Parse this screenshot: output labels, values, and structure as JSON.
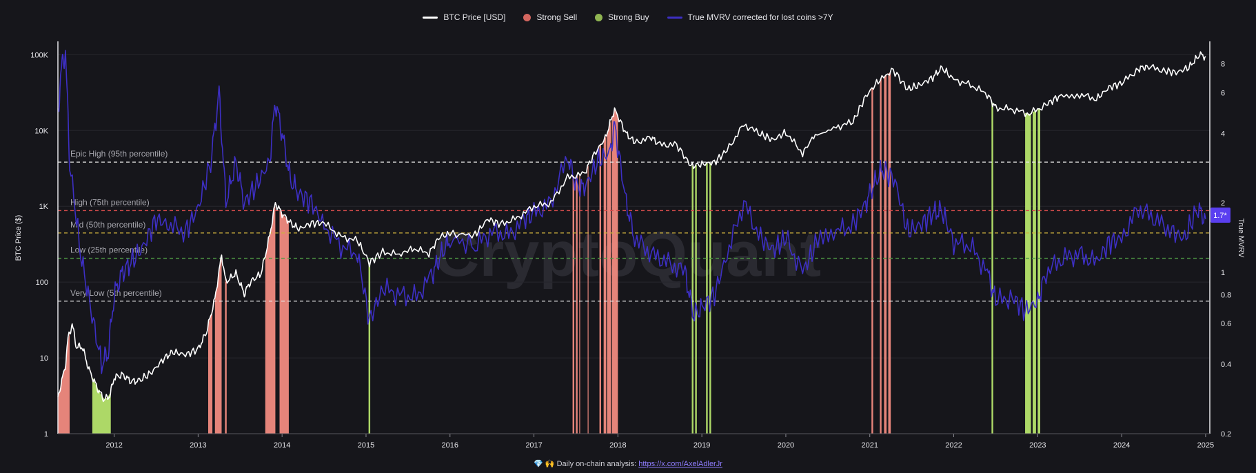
{
  "legend": {
    "items": [
      {
        "label": "BTC Price [USD]",
        "color": "#ffffff",
        "kind": "line"
      },
      {
        "label": "Strong Sell",
        "color": "#d4665f",
        "kind": "dot"
      },
      {
        "label": "Strong Buy",
        "color": "#90b552",
        "kind": "dot"
      },
      {
        "label": "True MVRV corrected for lost coins >7Y",
        "color": "#3d2fc4",
        "kind": "line"
      }
    ]
  },
  "watermark": "CryptoQuant",
  "footer": {
    "prefix": "💎 🙌 Daily on-chain analysis:",
    "link_text": "https://x.com/AxelAdlerJr"
  },
  "current_value_badge": "1.7*",
  "chart_data": {
    "type": "line",
    "x_range": [
      "2011-04",
      "2025-01"
    ],
    "x_ticks": [
      "2012",
      "2013",
      "2014",
      "2015",
      "2016",
      "2017",
      "2018",
      "2019",
      "2020",
      "2021",
      "2022",
      "2023",
      "2024",
      "2025"
    ],
    "y_left": {
      "label": "BTC Price ($)",
      "scale": "log",
      "range": [
        1,
        150000
      ],
      "ticks": [
        "1",
        "10",
        "100",
        "1K",
        "10K",
        "100K"
      ]
    },
    "y_right": {
      "label": "True MVRV",
      "scale": "log",
      "range": [
        0.2,
        10
      ],
      "ticks": [
        "0.2",
        "0.4",
        "0.6",
        "0.8",
        "1",
        "2",
        "4",
        "6",
        "8"
      ]
    },
    "colors": {
      "price": "#ffffff",
      "mvrv": "#3d2fc4",
      "sell": "#f08a80",
      "buy": "#b5e36b",
      "grid": "#26262d",
      "epic": "#e8e8e8",
      "high": "#d44b4b",
      "mid": "#cdb13c",
      "low": "#4f9b45"
    },
    "thresholds": [
      {
        "label": "Epic High (95th percentile)",
        "value": 3.0,
        "style": "epic"
      },
      {
        "label": "High (75th percentile)",
        "value": 1.85,
        "style": "high"
      },
      {
        "label": "Mid (50th percentile)",
        "value": 1.48,
        "style": "mid"
      },
      {
        "label": "Low (25th percentile)",
        "value": 1.15,
        "style": "low"
      },
      {
        "label": "Very Low (5th percentile)",
        "value": 0.75,
        "style": "epic"
      }
    ],
    "series": [
      {
        "name": "BTC Price [USD]",
        "axis": "left",
        "points": [
          [
            2011.33,
            3
          ],
          [
            2011.42,
            8
          ],
          [
            2011.45,
            18
          ],
          [
            2011.5,
            28
          ],
          [
            2011.55,
            14
          ],
          [
            2011.62,
            14
          ],
          [
            2011.7,
            7
          ],
          [
            2011.8,
            4
          ],
          [
            2011.88,
            2.8
          ],
          [
            2011.95,
            3.2
          ],
          [
            2012.0,
            5.5
          ],
          [
            2012.1,
            6
          ],
          [
            2012.2,
            4.9
          ],
          [
            2012.3,
            5
          ],
          [
            2012.45,
            6.5
          ],
          [
            2012.6,
            10
          ],
          [
            2012.7,
            12
          ],
          [
            2012.85,
            11
          ],
          [
            2013.0,
            13
          ],
          [
            2013.1,
            22
          ],
          [
            2013.2,
            60
          ],
          [
            2013.28,
            230
          ],
          [
            2013.33,
            100
          ],
          [
            2013.45,
            130
          ],
          [
            2013.55,
            70
          ],
          [
            2013.62,
            100
          ],
          [
            2013.75,
            130
          ],
          [
            2013.85,
            400
          ],
          [
            2013.92,
            1100
          ],
          [
            2014.0,
            800
          ],
          [
            2014.1,
            600
          ],
          [
            2014.2,
            500
          ],
          [
            2014.35,
            600
          ],
          [
            2014.5,
            600
          ],
          [
            2014.7,
            400
          ],
          [
            2014.9,
            350
          ],
          [
            2015.04,
            180
          ],
          [
            2015.2,
            250
          ],
          [
            2015.4,
            230
          ],
          [
            2015.55,
            280
          ],
          [
            2015.75,
            240
          ],
          [
            2015.88,
            400
          ],
          [
            2016.0,
            430
          ],
          [
            2016.3,
            420
          ],
          [
            2016.45,
            680
          ],
          [
            2016.6,
            580
          ],
          [
            2016.8,
            700
          ],
          [
            2017.0,
            1000
          ],
          [
            2017.2,
            1100
          ],
          [
            2017.4,
            2400
          ],
          [
            2017.6,
            2700
          ],
          [
            2017.7,
            4500
          ],
          [
            2017.85,
            8000
          ],
          [
            2017.96,
            19000
          ],
          [
            2018.1,
            9000
          ],
          [
            2018.2,
            7000
          ],
          [
            2018.4,
            8000
          ],
          [
            2018.5,
            6500
          ],
          [
            2018.7,
            6500
          ],
          [
            2018.87,
            3400
          ],
          [
            2019.0,
            3600
          ],
          [
            2019.15,
            3800
          ],
          [
            2019.3,
            5500
          ],
          [
            2019.5,
            12000
          ],
          [
            2019.7,
            9000
          ],
          [
            2019.85,
            7500
          ],
          [
            2020.0,
            9500
          ],
          [
            2020.2,
            5000
          ],
          [
            2020.35,
            9000
          ],
          [
            2020.6,
            11000
          ],
          [
            2020.8,
            13000
          ],
          [
            2020.95,
            28000
          ],
          [
            2021.1,
            45000
          ],
          [
            2021.28,
            63000
          ],
          [
            2021.45,
            35000
          ],
          [
            2021.6,
            40000
          ],
          [
            2021.75,
            50000
          ],
          [
            2021.86,
            67000
          ],
          [
            2022.0,
            47000
          ],
          [
            2022.2,
            40000
          ],
          [
            2022.4,
            30000
          ],
          [
            2022.5,
            20000
          ],
          [
            2022.7,
            19000
          ],
          [
            2022.9,
            16500
          ],
          [
            2023.1,
            22000
          ],
          [
            2023.25,
            28000
          ],
          [
            2023.5,
            30000
          ],
          [
            2023.7,
            26000
          ],
          [
            2023.85,
            37000
          ],
          [
            2024.0,
            42000
          ],
          [
            2024.2,
            65000
          ],
          [
            2024.3,
            70000
          ],
          [
            2024.5,
            62000
          ],
          [
            2024.65,
            58000
          ],
          [
            2024.8,
            68000
          ],
          [
            2024.93,
            100000
          ],
          [
            2025.0,
            95000
          ]
        ]
      },
      {
        "name": "True MVRV corrected for lost coins >7Y",
        "axis": "right",
        "points": [
          [
            2011.33,
            5
          ],
          [
            2011.38,
            8
          ],
          [
            2011.42,
            9
          ],
          [
            2011.47,
            3
          ],
          [
            2011.6,
            1.2
          ],
          [
            2011.72,
            0.7
          ],
          [
            2011.85,
            0.4
          ],
          [
            2011.93,
            0.45
          ],
          [
            2012.0,
            0.8
          ],
          [
            2012.1,
            1.0
          ],
          [
            2012.2,
            1.1
          ],
          [
            2012.35,
            1.3
          ],
          [
            2012.5,
            1.7
          ],
          [
            2012.65,
            1.6
          ],
          [
            2012.85,
            1.5
          ],
          [
            2013.0,
            1.9
          ],
          [
            2013.15,
            3
          ],
          [
            2013.25,
            6
          ],
          [
            2013.33,
            2
          ],
          [
            2013.45,
            3
          ],
          [
            2013.55,
            2
          ],
          [
            2013.7,
            2.4
          ],
          [
            2013.85,
            3
          ],
          [
            2013.92,
            5.5
          ],
          [
            2014.0,
            4
          ],
          [
            2014.1,
            2.5
          ],
          [
            2014.2,
            2.2
          ],
          [
            2014.35,
            2.0
          ],
          [
            2014.5,
            1.6
          ],
          [
            2014.7,
            1.3
          ],
          [
            2014.9,
            1.2
          ],
          [
            2015.04,
            0.62
          ],
          [
            2015.2,
            0.85
          ],
          [
            2015.4,
            0.8
          ],
          [
            2015.6,
            0.78
          ],
          [
            2015.8,
            1.0
          ],
          [
            2015.9,
            1.2
          ],
          [
            2016.0,
            1.4
          ],
          [
            2016.3,
            1.3
          ],
          [
            2016.5,
            1.5
          ],
          [
            2016.7,
            1.45
          ],
          [
            2016.9,
            1.7
          ],
          [
            2017.0,
            1.8
          ],
          [
            2017.2,
            2.0
          ],
          [
            2017.4,
            3.2
          ],
          [
            2017.5,
            2.4
          ],
          [
            2017.6,
            2.3
          ],
          [
            2017.75,
            3.0
          ],
          [
            2017.9,
            3.3
          ],
          [
            2017.96,
            4.3
          ],
          [
            2018.1,
            2.0
          ],
          [
            2018.2,
            1.4
          ],
          [
            2018.4,
            1.2
          ],
          [
            2018.6,
            1.1
          ],
          [
            2018.8,
            1.0
          ],
          [
            2018.9,
            0.65
          ],
          [
            2019.0,
            0.7
          ],
          [
            2019.15,
            0.8
          ],
          [
            2019.3,
            1.2
          ],
          [
            2019.5,
            2.0
          ],
          [
            2019.7,
            1.4
          ],
          [
            2019.85,
            1.25
          ],
          [
            2020.0,
            1.4
          ],
          [
            2020.2,
            1.0
          ],
          [
            2020.35,
            1.3
          ],
          [
            2020.6,
            1.5
          ],
          [
            2020.8,
            1.6
          ],
          [
            2020.95,
            2.0
          ],
          [
            2021.05,
            2.4
          ],
          [
            2021.15,
            2.8
          ],
          [
            2021.3,
            2.5
          ],
          [
            2021.45,
            1.5
          ],
          [
            2021.6,
            1.6
          ],
          [
            2021.75,
            1.8
          ],
          [
            2021.86,
            1.85
          ],
          [
            2022.0,
            1.35
          ],
          [
            2022.2,
            1.3
          ],
          [
            2022.4,
            1.0
          ],
          [
            2022.5,
            0.75
          ],
          [
            2022.7,
            0.78
          ],
          [
            2022.85,
            0.68
          ],
          [
            2023.0,
            0.75
          ],
          [
            2023.1,
            1.0
          ],
          [
            2023.3,
            1.15
          ],
          [
            2023.5,
            1.2
          ],
          [
            2023.7,
            1.1
          ],
          [
            2023.85,
            1.35
          ],
          [
            2024.0,
            1.4
          ],
          [
            2024.2,
            1.9
          ],
          [
            2024.4,
            1.7
          ],
          [
            2024.6,
            1.5
          ],
          [
            2024.75,
            1.4
          ],
          [
            2024.9,
            1.9
          ],
          [
            2025.0,
            1.7
          ]
        ]
      }
    ],
    "sell_zones": [
      [
        2011.33,
        2011.47
      ],
      [
        2013.12,
        2013.17
      ],
      [
        2013.2,
        2013.28
      ],
      [
        2013.32,
        2013.34
      ],
      [
        2013.8,
        2013.92
      ],
      [
        2013.97,
        2014.08
      ],
      [
        2017.46,
        2017.48
      ],
      [
        2017.5,
        2017.52
      ],
      [
        2017.54,
        2017.55
      ],
      [
        2017.64,
        2017.65
      ],
      [
        2017.78,
        2017.8
      ],
      [
        2017.83,
        2017.86
      ],
      [
        2017.87,
        2017.92
      ],
      [
        2017.93,
        2018.0
      ],
      [
        2021.02,
        2021.04
      ],
      [
        2021.12,
        2021.14
      ],
      [
        2021.17,
        2021.2
      ],
      [
        2021.22,
        2021.25
      ]
    ],
    "buy_zones": [
      [
        2011.74,
        2011.96
      ],
      [
        2015.03,
        2015.05
      ],
      [
        2018.88,
        2018.9
      ],
      [
        2018.92,
        2018.94
      ],
      [
        2019.05,
        2019.07
      ],
      [
        2019.09,
        2019.11
      ],
      [
        2022.45,
        2022.47
      ],
      [
        2022.85,
        2022.92
      ],
      [
        2022.94,
        2022.98
      ],
      [
        2023.0,
        2023.03
      ]
    ]
  }
}
